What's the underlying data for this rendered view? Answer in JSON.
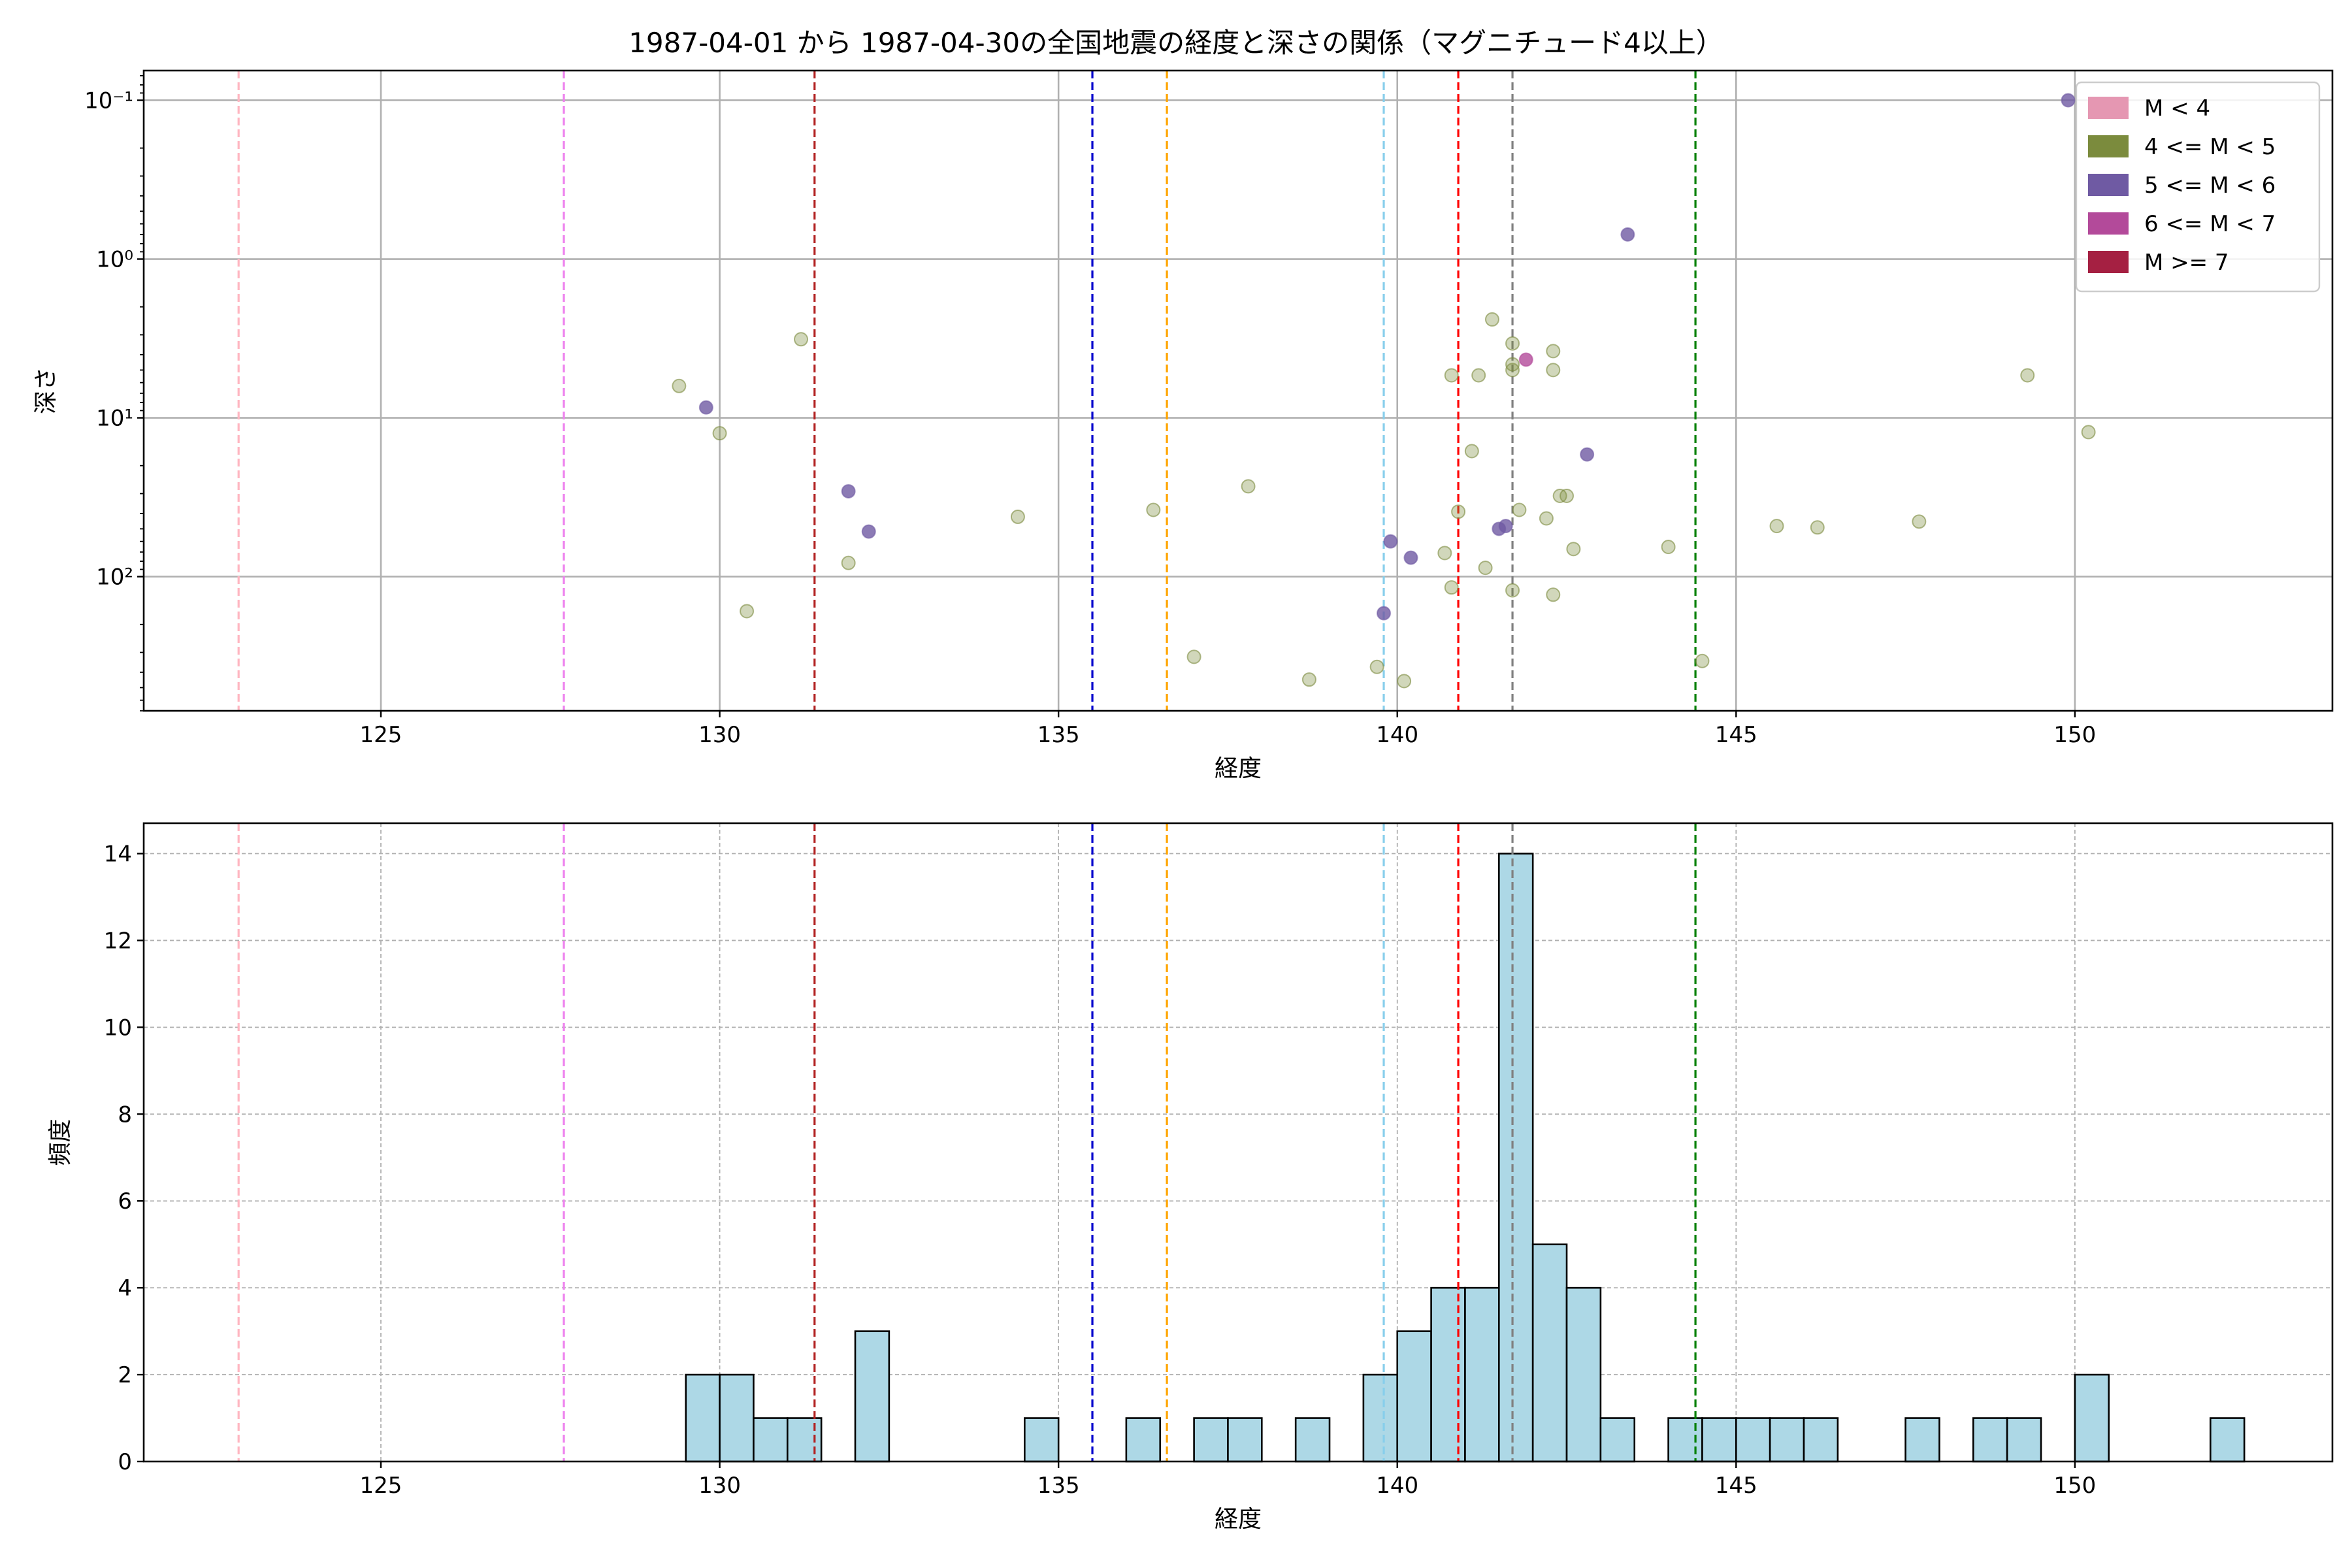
{
  "figure_title": "1987-04-01 から 1987-04-30の全国地震の経度と深さの関係（マグニチュード4以上）",
  "colors": {
    "scatter_point_m4_5": "#7b8b3d",
    "scatter_point_m5_6": "#6f5aa3",
    "scatter_point_m6_7": "#b34a9a",
    "hist_bar_fill": "#add8e6",
    "hist_bar_edge": "#000000"
  },
  "reference_lines": [
    {
      "x": 122.9,
      "color": "#ffb6c1"
    },
    {
      "x": 127.7,
      "color": "#ee82ee"
    },
    {
      "x": 131.4,
      "color": "#b22222"
    },
    {
      "x": 135.5,
      "color": "#0000cd"
    },
    {
      "x": 136.6,
      "color": "#ffa500"
    },
    {
      "x": 139.8,
      "color": "#87ceeb"
    },
    {
      "x": 140.9,
      "color": "#ff0000"
    },
    {
      "x": 141.7,
      "color": "#808080"
    },
    {
      "x": 144.4,
      "color": "#008000"
    }
  ],
  "chart_data": [
    {
      "type": "scatter",
      "title": "",
      "xlabel": "経度",
      "ylabel": "深さ",
      "xlim": [
        121.5,
        153.8
      ],
      "ylim": [
        700,
        0.065
      ],
      "yscale": "log",
      "y_inverted": true,
      "grid": true,
      "xticks": [
        125,
        130,
        135,
        140,
        145,
        150
      ],
      "yticks": [
        {
          "value": 0.1,
          "label": "10⁻¹"
        },
        {
          "value": 1,
          "label": "10⁰"
        },
        {
          "value": 10,
          "label": "10¹"
        },
        {
          "value": 100,
          "label": "10²"
        }
      ],
      "legend": {
        "placement": "top-right",
        "entries": [
          {
            "label": "M < 4",
            "color": "#e597b2"
          },
          {
            "label": "4 <= M < 5",
            "color": "#7b8b3d"
          },
          {
            "label": "5 <= M < 6",
            "color": "#6f5aa3"
          },
          {
            "label": "6 <= M < 7",
            "color": "#b34a9a"
          },
          {
            "label": "M >= 7",
            "color": "#a52042"
          }
        ]
      },
      "series": [
        {
          "name": "4 <= M < 5",
          "color": "#7b8b3d",
          "points": [
            [
              129.4,
              6.3
            ],
            [
              130.0,
              12.5
            ],
            [
              130.4,
              165
            ],
            [
              131.2,
              3.2
            ],
            [
              131.9,
              82
            ],
            [
              134.4,
              42
            ],
            [
              136.4,
              38
            ],
            [
              137.0,
              320
            ],
            [
              137.8,
              27
            ],
            [
              138.7,
              445
            ],
            [
              139.7,
              370
            ],
            [
              140.1,
              455
            ],
            [
              140.7,
              71
            ],
            [
              140.8,
              5.4
            ],
            [
              140.8,
              117
            ],
            [
              140.9,
              39
            ],
            [
              141.1,
              16.2
            ],
            [
              141.2,
              5.4
            ],
            [
              141.3,
              88
            ],
            [
              141.4,
              2.4
            ],
            [
              141.7,
              4.6
            ],
            [
              141.7,
              3.4
            ],
            [
              141.7,
              5.0
            ],
            [
              141.8,
              38
            ],
            [
              141.7,
              122
            ],
            [
              142.2,
              43
            ],
            [
              142.3,
              5.0
            ],
            [
              142.3,
              3.8
            ],
            [
              142.3,
              130
            ],
            [
              142.4,
              31
            ],
            [
              142.5,
              31
            ],
            [
              142.6,
              67
            ],
            [
              144.0,
              65
            ],
            [
              144.5,
              340
            ],
            [
              145.6,
              48
            ],
            [
              146.2,
              49
            ],
            [
              147.7,
              45
            ],
            [
              149.3,
              5.4
            ],
            [
              150.2,
              12.3
            ]
          ]
        },
        {
          "name": "5 <= M < 6",
          "color": "#6f5aa3",
          "points": [
            [
              129.8,
              8.6
            ],
            [
              131.9,
              29
            ],
            [
              132.2,
              52
            ],
            [
              139.8,
              170
            ],
            [
              139.9,
              60
            ],
            [
              140.2,
              76
            ],
            [
              141.5,
              50
            ],
            [
              141.6,
              48
            ],
            [
              142.8,
              17
            ],
            [
              143.4,
              0.7
            ],
            [
              149.9,
              0.1
            ]
          ]
        },
        {
          "name": "6 <= M < 7",
          "color": "#b34a9a",
          "points": [
            [
              141.9,
              4.3
            ]
          ]
        }
      ]
    },
    {
      "type": "bar",
      "title": "",
      "xlabel": "経度",
      "ylabel": "頻度",
      "xlim": [
        121.5,
        153.8
      ],
      "ylim": [
        0,
        14.7
      ],
      "grid": true,
      "xticks": [
        125,
        130,
        135,
        140,
        145,
        150
      ],
      "yticks": [
        0,
        2,
        4,
        6,
        8,
        10,
        12,
        14
      ],
      "bin_width": 0.5,
      "bins": [
        {
          "x": 129.5,
          "count": 2
        },
        {
          "x": 130.0,
          "count": 2
        },
        {
          "x": 130.5,
          "count": 1
        },
        {
          "x": 131.0,
          "count": 1
        },
        {
          "x": 132.0,
          "count": 3
        },
        {
          "x": 134.5,
          "count": 1
        },
        {
          "x": 136.0,
          "count": 1
        },
        {
          "x": 137.0,
          "count": 1
        },
        {
          "x": 137.5,
          "count": 1
        },
        {
          "x": 138.5,
          "count": 1
        },
        {
          "x": 139.5,
          "count": 2
        },
        {
          "x": 140.0,
          "count": 3
        },
        {
          "x": 140.5,
          "count": 4
        },
        {
          "x": 141.0,
          "count": 4
        },
        {
          "x": 141.5,
          "count": 14
        },
        {
          "x": 142.0,
          "count": 5
        },
        {
          "x": 142.5,
          "count": 4
        },
        {
          "x": 143.0,
          "count": 1
        },
        {
          "x": 144.0,
          "count": 1
        },
        {
          "x": 144.5,
          "count": 1
        },
        {
          "x": 145.0,
          "count": 1
        },
        {
          "x": 145.5,
          "count": 1
        },
        {
          "x": 146.0,
          "count": 1
        },
        {
          "x": 147.5,
          "count": 1
        },
        {
          "x": 148.5,
          "count": 1
        },
        {
          "x": 149.0,
          "count": 1
        },
        {
          "x": 150.0,
          "count": 2
        },
        {
          "x": 152.0,
          "count": 1
        }
      ]
    }
  ]
}
